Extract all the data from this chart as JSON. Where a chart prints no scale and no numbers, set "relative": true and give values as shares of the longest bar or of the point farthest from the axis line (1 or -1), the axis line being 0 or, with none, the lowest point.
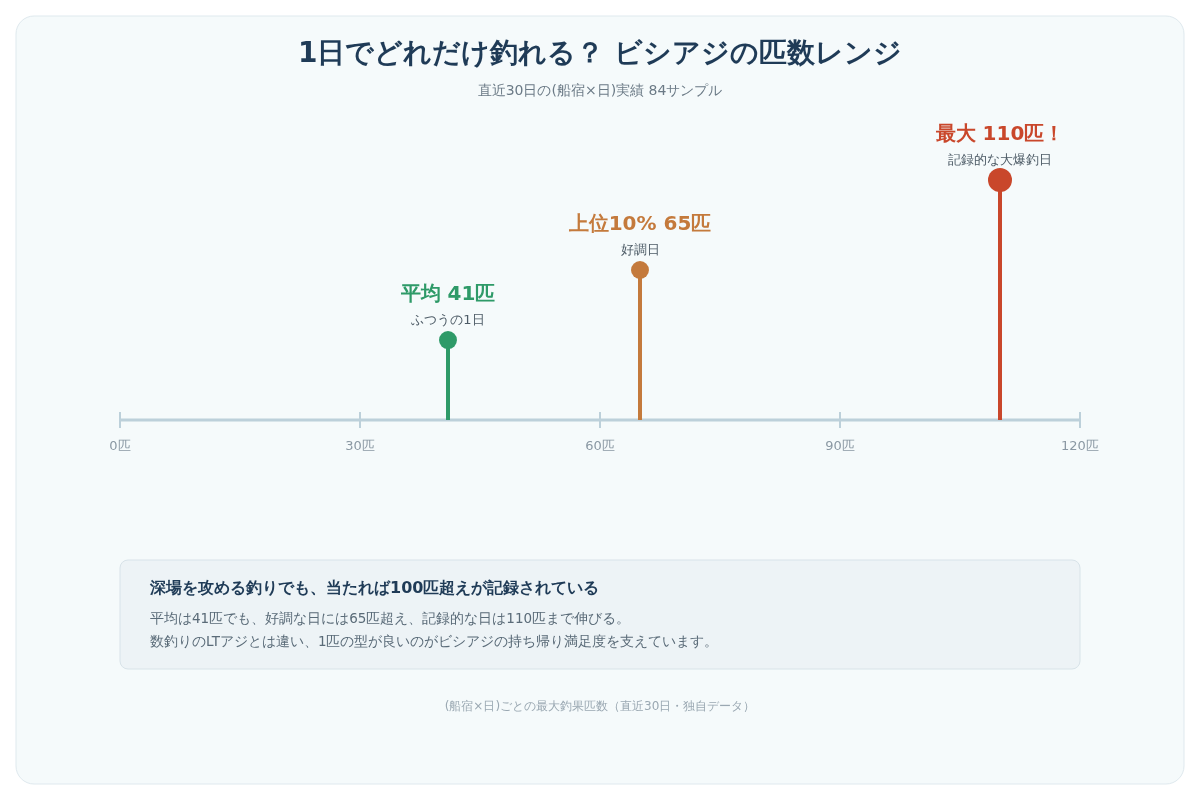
{
  "chart_data": {
    "type": "lollipop",
    "title": "1日でどれだけ釣れる？ ビシアジの匹数レンジ",
    "subtitle": "直近30日の(船宿×日)実績 84サンプル",
    "relative": true,
    "x": [
      41,
      65,
      110
    ],
    "values": [
      0.333,
      0.625,
      1
    ],
    "sizes": [
      0.56,
      0.56,
      1
    ],
    "colors": [
      "#2e9a68",
      "#c47a3c",
      "#c9472b"
    ],
    "xlim": [
      0,
      120
    ],
    "xticks": [
      {
        "value": 0,
        "label": "0匹"
      },
      {
        "value": 30,
        "label": "30匹"
      },
      {
        "value": 60,
        "label": "60匹"
      },
      {
        "value": 90,
        "label": "90匹"
      },
      {
        "value": 120,
        "label": "120匹"
      }
    ],
    "annotations": [
      {
        "text": "平均 41匹",
        "x": 41,
        "y": 0.333
      },
      {
        "text": "ふつうの1日",
        "x": 41,
        "y": 0.333
      },
      {
        "text": "上位10% 65匹",
        "x": 65,
        "y": 0.625
      },
      {
        "text": "好調日",
        "x": 65,
        "y": 0.625
      },
      {
        "text": "最大 110匹！",
        "x": 110,
        "y": 1
      },
      {
        "text": "記録的な大爆釣日",
        "x": 110,
        "y": 1
      },
      "深場を攻める釣りでも、当たれば100匹超えが記録されている",
      "平均は41匹でも、好調な日には65匹超え、記録的な日は110匹まで伸びる。",
      "数釣りのLTアジとは違い、1匹の型が良いのがビシアジの持ち帰り満足度を支えています。",
      "(船宿×日)ごとの最大釣果匹数（直近30日・独自データ）"
    ]
  }
}
